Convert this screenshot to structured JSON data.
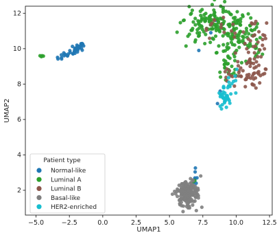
{
  "chart_data": {
    "type": "scatter",
    "title": "",
    "xlabel": "UMAP1",
    "ylabel": "UMAP2",
    "xlim": [
      -5.8,
      12.7
    ],
    "ylim": [
      0.6,
      12.4
    ],
    "xticks": [
      -5.0,
      -2.5,
      0.0,
      2.5,
      5.0,
      7.5,
      10.0,
      12.5
    ],
    "xtick_labels": [
      "−5.0",
      "−2.5",
      "0.0",
      "2.5",
      "5.0",
      "7.5",
      "10.0",
      "12.5"
    ],
    "yticks": [
      2,
      4,
      6,
      8,
      10,
      12
    ],
    "ytick_labels": [
      "2",
      "4",
      "6",
      "8",
      "10",
      "12"
    ],
    "grid": false,
    "legend": {
      "title": "Patient type",
      "placement": "bottom-left"
    },
    "series": [
      {
        "name": "Normal-like",
        "color": "#1f77b4",
        "clusters": [
          {
            "cx": -2.2,
            "cy": 9.85,
            "sx": 0.55,
            "sy": 0.18,
            "n": 38,
            "tilt": 0.35
          },
          {
            "cx": 6.9,
            "cy": 2.9,
            "sx": 0.08,
            "sy": 0.3,
            "n": 6,
            "tilt": 0
          }
        ],
        "points": [
          [
            -1.5,
            10.25
          ],
          [
            -1.7,
            10.15
          ],
          [
            -3.1,
            9.65
          ],
          [
            -2.9,
            9.6
          ],
          [
            8.5,
            11.6
          ],
          [
            8.1,
            10.9
          ],
          [
            7.2,
            9.9
          ],
          [
            8.8,
            7.6
          ],
          [
            8.6,
            6.9
          ],
          [
            7.0,
            2.4
          ]
        ]
      },
      {
        "name": "Luminal A",
        "color": "#2ca02c",
        "clusters": [
          {
            "cx": 8.4,
            "cy": 11.3,
            "sx": 1.2,
            "sy": 0.55,
            "n": 130,
            "tilt": 0
          },
          {
            "cx": 10.4,
            "cy": 10.5,
            "sx": 0.8,
            "sy": 0.7,
            "n": 80,
            "tilt": 0
          },
          {
            "cx": 9.3,
            "cy": 9.2,
            "sx": 0.35,
            "sy": 0.7,
            "n": 30,
            "tilt": 0
          }
        ],
        "points": [
          [
            -4.7,
            9.6
          ],
          [
            -4.55,
            9.6
          ],
          [
            -4.45,
            9.58
          ],
          [
            -4.6,
            9.55
          ],
          [
            6.8,
            2.5
          ],
          [
            6.9,
            2.55
          ]
        ]
      },
      {
        "name": "Luminal B",
        "color": "#8c564b",
        "clusters": [
          {
            "cx": 11.3,
            "cy": 9.6,
            "sx": 0.45,
            "sy": 0.9,
            "n": 60,
            "tilt": 0
          },
          {
            "cx": 10.2,
            "cy": 8.6,
            "sx": 0.7,
            "sy": 0.35,
            "n": 30,
            "tilt": 0
          },
          {
            "cx": 9.0,
            "cy": 11.2,
            "sx": 0.8,
            "sy": 0.4,
            "n": 14,
            "tilt": 0
          }
        ],
        "points": []
      },
      {
        "name": "Basal-like",
        "color": "#7f7f7f",
        "clusters": [
          {
            "cx": 6.3,
            "cy": 1.75,
            "sx": 0.42,
            "sy": 0.38,
            "n": 150,
            "tilt": 0
          },
          {
            "cx": 6.6,
            "cy": 2.3,
            "sx": 0.25,
            "sy": 0.2,
            "n": 25,
            "tilt": 0
          }
        ],
        "points": []
      },
      {
        "name": "HER2-enriched",
        "color": "#17becf",
        "clusters": [
          {
            "cx": 9.1,
            "cy": 7.35,
            "sx": 0.28,
            "sy": 0.35,
            "n": 32,
            "tilt": 0
          },
          {
            "cx": 9.6,
            "cy": 8.1,
            "sx": 0.2,
            "sy": 0.25,
            "n": 10,
            "tilt": 0
          }
        ],
        "points": [
          [
            8.8,
            6.75
          ],
          [
            8.9,
            6.6
          ]
        ]
      }
    ]
  }
}
